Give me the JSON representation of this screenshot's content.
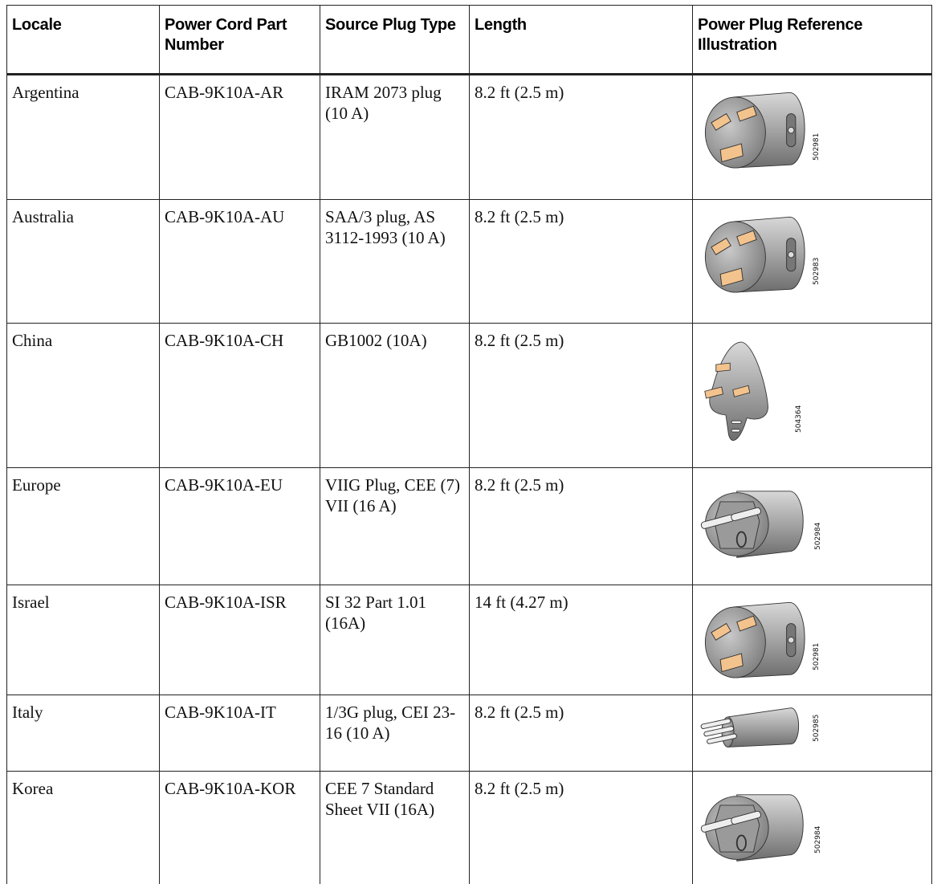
{
  "table": {
    "header": [
      "Locale",
      "Power Cord Part Number",
      "Source Plug Type",
      "Length",
      "Power Plug Reference Illustration"
    ],
    "rows": [
      [
        "Argentina",
        "CAB-9K10A-AR",
        "IRAM 2073 plug (10 A)",
        "8.2 ft (2.5 m)",
        "502981"
      ],
      [
        "Australia",
        "CAB-9K10A-AU",
        "SAA/3 plug, AS 3112-1993 (10 A)",
        "8.2 ft (2.5 m)",
        "502983"
      ],
      [
        "China",
        "CAB-9K10A-CH",
        "GB1002 (10A)",
        "8.2 ft (2.5 m)",
        "504364"
      ],
      [
        "Europe",
        "CAB-9K10A-EU",
        "VIIG Plug, CEE (7) VII (16 A)",
        "8.2 ft (2.5 m)",
        "502984"
      ],
      [
        "Israel",
        "CAB-9K10A-ISR",
        "SI 32 Part 1.01 (16A)",
        "14 ft (4.27 m)",
        "502981"
      ],
      [
        "Italy",
        "CAB-9K10A-IT",
        "1/3G plug, CEI 23-16 (10 A)",
        "8.2 ft (2.5 m)",
        "502985"
      ],
      [
        "Korea",
        "CAB-9K10A-KOR",
        "CEE 7 Standard Sheet VII (16A)",
        "8.2 ft (2.5 m)",
        "502984"
      ]
    ]
  }
}
